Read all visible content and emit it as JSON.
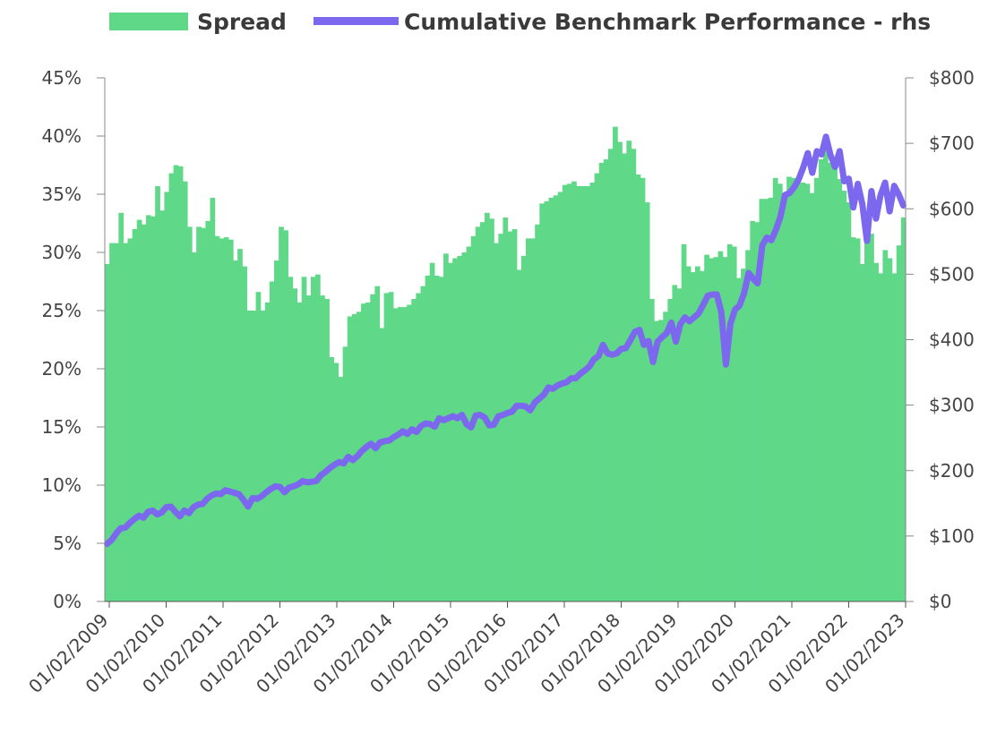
{
  "chart_data": {
    "type": "bar+line",
    "legend_position": "top",
    "grid": false,
    "series": [
      {
        "name": "Spread",
        "type": "bar",
        "axis": "left",
        "color": "#5fd888",
        "values": [
          29.0,
          30.8,
          30.8,
          33.4,
          30.8,
          31.2,
          32.0,
          32.8,
          32.4,
          33.2,
          33.1,
          35.7,
          33.6,
          35.2,
          36.8,
          37.5,
          37.4,
          36.1,
          32.2,
          30.0,
          32.2,
          32.1,
          32.7,
          34.7,
          31.4,
          31.2,
          31.3,
          31.1,
          29.3,
          30.3,
          28.8,
          25.0,
          25.0,
          26.6,
          25.0,
          25.7,
          27.5,
          29.3,
          32.2,
          31.9,
          27.9,
          26.9,
          25.7,
          27.9,
          26.3,
          27.9,
          28.1,
          26.3,
          26.0,
          21.0,
          20.5,
          19.3,
          21.9,
          24.5,
          24.7,
          24.9,
          25.6,
          25.7,
          26.4,
          27.1,
          23.5,
          26.5,
          26.6,
          25.2,
          25.3,
          25.3,
          25.5,
          26.0,
          26.5,
          27.1,
          28.0,
          29.1,
          28.0,
          27.9,
          29.9,
          29.1,
          29.5,
          29.7,
          30.0,
          30.5,
          31.4,
          32.2,
          32.6,
          33.4,
          32.9,
          30.8,
          31.6,
          33.0,
          31.8,
          32.0,
          28.5,
          29.7,
          31.2,
          31.2,
          32.4,
          34.2,
          34.4,
          34.7,
          34.9,
          35.2,
          35.8,
          35.9,
          36.1,
          35.7,
          35.7,
          35.7,
          36.0,
          36.8,
          37.7,
          38.0,
          38.9,
          40.8,
          39.5,
          38.5,
          39.6,
          38.9,
          36.7,
          36.4,
          34.3,
          26.0,
          24.1,
          24.2,
          24.9,
          26.0,
          27.2,
          26.9,
          30.7,
          28.8,
          28.3,
          28.8,
          28.4,
          29.8,
          29.5,
          29.6,
          30.1,
          29.6,
          30.7,
          30.5,
          27.8,
          28.6,
          30.2,
          32.7,
          32.6,
          34.6,
          34.6,
          34.7,
          36.4,
          35.9,
          35.0,
          36.5,
          36.4,
          36.2,
          36.0,
          35.9,
          35.1,
          36.4,
          38.0,
          38.9,
          37.7,
          37.3,
          36.3,
          35.3,
          34.3,
          31.3,
          31.2,
          29.0,
          31.6,
          31.6,
          29.1,
          28.2,
          30.2,
          29.5,
          28.2,
          30.6,
          33.0
        ],
        "ylim": [
          0,
          45
        ],
        "tick_labels": [
          "0%",
          "5%",
          "10%",
          "15%",
          "20%",
          "25%",
          "30%",
          "35%",
          "40%",
          "45%"
        ]
      },
      {
        "name": "Cumulative Benchmark Performance - rhs",
        "type": "line",
        "axis": "right",
        "color": "#7b68ee",
        "values": [
          88,
          94,
          104,
          112,
          113,
          120,
          126,
          131,
          128,
          137,
          139,
          133,
          136,
          144,
          145,
          137,
          130,
          139,
          135,
          144,
          148,
          149,
          157,
          162,
          165,
          164,
          170,
          168,
          166,
          164,
          155,
          145,
          158,
          157,
          161,
          167,
          172,
          176,
          175,
          167,
          174,
          176,
          179,
          184,
          182,
          183,
          184,
          193,
          198,
          204,
          209,
          213,
          211,
          221,
          216,
          222,
          230,
          236,
          241,
          234,
          243,
          245,
          246,
          251,
          255,
          260,
          256,
          263,
          259,
          268,
          272,
          271,
          267,
          280,
          277,
          280,
          283,
          280,
          285,
          271,
          266,
          284,
          285,
          281,
          269,
          270,
          283,
          285,
          288,
          290,
          299,
          299,
          298,
          292,
          304,
          310,
          316,
          327,
          325,
          330,
          333,
          335,
          341,
          341,
          348,
          353,
          359,
          370,
          375,
          392,
          379,
          377,
          379,
          386,
          387,
          399,
          412,
          415,
          392,
          398,
          366,
          397,
          404,
          410,
          426,
          397,
          424,
          434,
          428,
          434,
          440,
          453,
          467,
          469,
          469,
          442,
          362,
          424,
          446,
          452,
          471,
          502,
          493,
          486,
          544,
          556,
          552,
          568,
          588,
          621,
          624,
          633,
          645,
          663,
          685,
          655,
          688,
          683,
          710,
          682,
          664,
          688,
          642,
          646,
          602,
          638,
          607,
          551,
          627,
          585,
          621,
          640,
          596,
          635,
          622,
          605
        ],
        "ylim": [
          0,
          800
        ],
        "tick_labels": [
          "$0",
          "$100",
          "$200",
          "$300",
          "$400",
          "$500",
          "$600",
          "$700",
          "$800"
        ]
      }
    ],
    "x_tick_labels": [
      "01/02/2009",
      "01/02/2010",
      "01/02/2011",
      "01/02/2012",
      "01/02/2013",
      "01/02/2014",
      "01/02/2015",
      "01/02/2016",
      "01/02/2017",
      "01/02/2018",
      "01/02/2019",
      "01/02/2020",
      "01/02/2021",
      "01/02/2022",
      "01/02/2023"
    ],
    "xlabel": "",
    "ylabel": "",
    "y2label": ""
  }
}
